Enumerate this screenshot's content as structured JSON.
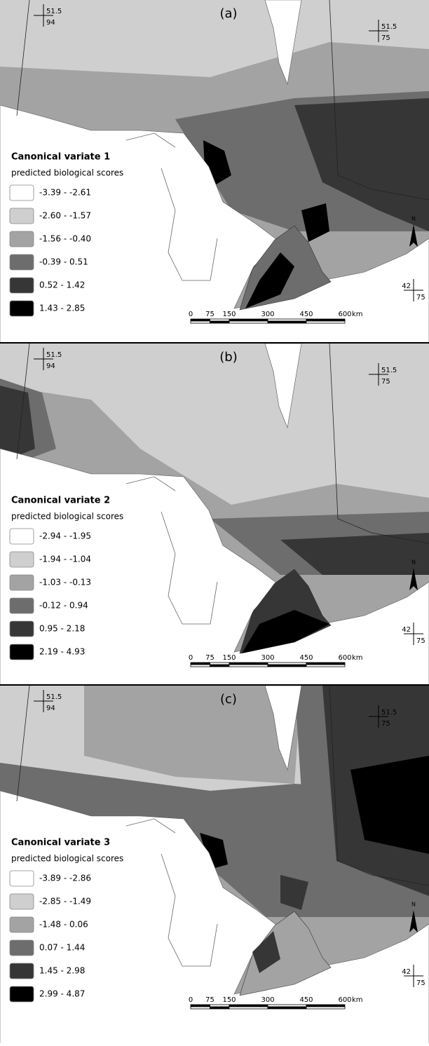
{
  "panels": [
    {
      "label": "(a)",
      "legend": {
        "title": "Canonical variate 1",
        "subtitle": "predicted biological scores",
        "items": [
          "-3.39 - -2.61",
          "-2.60 - -1.57",
          "-1.56 - -0.40",
          "-0.39 - 0.51",
          "0.52 - 1.42",
          "1.43 - 2.85"
        ]
      }
    },
    {
      "label": "(b)",
      "legend": {
        "title": "Canonical variate 2",
        "subtitle": "predicted biological scores",
        "items": [
          "-2.94 - -1.95",
          "-1.94 - -1.04",
          "-1.03 - -0.13",
          "-0.12 - 0.94",
          "0.95 - 2.18",
          "2.19 - 4.93"
        ]
      }
    },
    {
      "label": "(c)",
      "legend": {
        "title": "Canonical variate 3",
        "subtitle": "predicted biological scores",
        "items": [
          "-3.89 - -2.86",
          "-2.85 - -1.49",
          "-1.48 - 0.06",
          "0.07 - 1.44",
          "1.45 - 2.98",
          "2.99 - 4.87"
        ]
      }
    }
  ],
  "legend_colors": [
    "#ffffff",
    "#cfcfcf",
    "#a3a3a3",
    "#6d6d6d",
    "#363636",
    "#000000"
  ],
  "coordinates": {
    "top_left_lat": "51.5",
    "top_left_lon": "94",
    "top_right_lat": "51.5",
    "top_right_lon": "75",
    "bottom_right_lat": "42",
    "bottom_right_lon": "75"
  },
  "north_label": "N",
  "scale_bar": {
    "ticks": [
      0,
      75,
      150,
      300,
      450,
      600
    ],
    "unit": "km"
  }
}
